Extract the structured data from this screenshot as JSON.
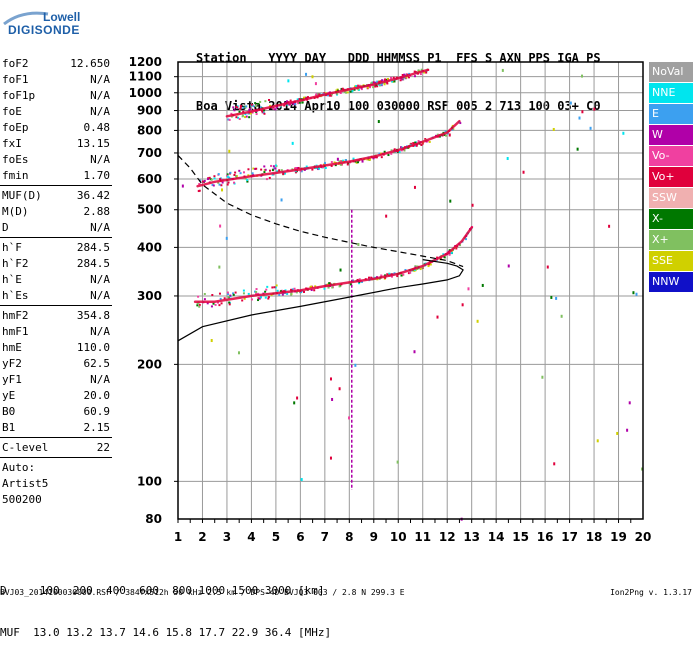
{
  "logo": {
    "line1": "Lowell",
    "line2": "DIGISONDE"
  },
  "header": {
    "line1": "Station   YYYY DAY   DDD HHMMSS P1  FFS S AXN PPS IGA PS",
    "line2": "Boa Vista 2014 Apr10 100 030000 RSF 005 2 713 100 03+ C0"
  },
  "params": [
    {
      "group": [
        {
          "k": "foF2",
          "v": "12.650"
        },
        {
          "k": "foF1",
          "v": "N/A"
        },
        {
          "k": "foF1p",
          "v": "N/A"
        },
        {
          "k": "foE",
          "v": "N/A"
        },
        {
          "k": "foEp",
          "v": "0.48"
        },
        {
          "k": "fxI",
          "v": "13.15"
        },
        {
          "k": "foEs",
          "v": "N/A"
        },
        {
          "k": "fmin",
          "v": "1.70"
        }
      ]
    },
    {
      "group": [
        {
          "k": "MUF(D)",
          "v": "36.42"
        },
        {
          "k": "M(D)",
          "v": "2.88"
        },
        {
          "k": "D",
          "v": "N/A"
        }
      ]
    },
    {
      "group": [
        {
          "k": "h`F",
          "v": "284.5"
        },
        {
          "k": "h`F2",
          "v": "284.5"
        },
        {
          "k": "h`E",
          "v": "N/A"
        },
        {
          "k": "h`Es",
          "v": "N/A"
        }
      ]
    },
    {
      "group": [
        {
          "k": "hmF2",
          "v": "354.8"
        },
        {
          "k": "hmF1",
          "v": "N/A"
        },
        {
          "k": "hmE",
          "v": "110.0"
        },
        {
          "k": "yF2",
          "v": "62.5"
        },
        {
          "k": "yF1",
          "v": "N/A"
        },
        {
          "k": "yE",
          "v": "20.0"
        },
        {
          "k": "B0",
          "v": "60.9"
        },
        {
          "k": "B1",
          "v": "2.15"
        }
      ]
    },
    {
      "group": [
        {
          "k": "C-level",
          "v": "22"
        }
      ]
    }
  ],
  "scaling": {
    "line1": "Auto:",
    "line2": "Artist5",
    "line3": "500200"
  },
  "legend": [
    {
      "label": "NoVal",
      "color": "#a0a0a0"
    },
    {
      "label": "NNE",
      "color": "#00e5ee"
    },
    {
      "label": "E",
      "color": "#3ca0f0"
    },
    {
      "label": "W",
      "color": "#b000a8"
    },
    {
      "label": "Vo-",
      "color": "#f040a0"
    },
    {
      "label": "Vo+",
      "color": "#e0003c"
    },
    {
      "label": "SSW",
      "color": "#f0b0b0"
    },
    {
      "label": "X-",
      "color": "#007800"
    },
    {
      "label": "X+",
      "color": "#80c060"
    },
    {
      "label": "SSE",
      "color": "#d0d000"
    },
    {
      "label": "NNW",
      "color": "#1010c8"
    }
  ],
  "footer": {
    "d_row": "D     100  200  400  600  800 1000 1500 3000 [km]",
    "muf_row": "MUF  13.0 13.2 13.7 14.6 15.8 17.7 22.9 36.4 [MHz]",
    "file_info": "BVJ03_2014100030000.RSF / 384fx512h 50 kHz 2.5 km / DPS-4D BVJ03 003 / 2.8 N 299.3 E",
    "version": "Ion2Png v. 1.3.17"
  },
  "chart_data": {
    "type": "scatter",
    "title": "",
    "xlabel": "",
    "ylabel": "",
    "xlim": [
      1,
      20
    ],
    "ylim": [
      80,
      1200
    ],
    "xticks": [
      1,
      2,
      3,
      4,
      5,
      6,
      7,
      8,
      9,
      10,
      11,
      12,
      13,
      14,
      15,
      16,
      17,
      18,
      19,
      20
    ],
    "yticks": [
      80,
      100,
      200,
      300,
      400,
      500,
      600,
      700,
      800,
      900,
      1000,
      1100,
      1200
    ],
    "yscale": "log",
    "grid": true,
    "series": [
      {
        "color": "#e0003c",
        "style": "trace",
        "points": [
          [
            1.7,
            290
          ],
          [
            2.5,
            290
          ],
          [
            4,
            300
          ],
          [
            5,
            305
          ],
          [
            6,
            310
          ],
          [
            7,
            318
          ],
          [
            8,
            325
          ],
          [
            9,
            332
          ],
          [
            10,
            342
          ],
          [
            11,
            358
          ],
          [
            12,
            385
          ],
          [
            12.6,
            415
          ],
          [
            13,
            450
          ]
        ]
      },
      {
        "color": "#e0003c",
        "style": "trace",
        "points": [
          [
            1.8,
            575
          ],
          [
            2.5,
            590
          ],
          [
            4,
            610
          ],
          [
            5,
            622
          ],
          [
            6,
            635
          ],
          [
            7,
            650
          ],
          [
            8,
            665
          ],
          [
            9,
            685
          ],
          [
            10,
            712
          ],
          [
            11,
            748
          ],
          [
            12,
            790
          ],
          [
            12.5,
            845
          ]
        ]
      },
      {
        "color": "#e0003c",
        "style": "trace",
        "points": [
          [
            3,
            870
          ],
          [
            4,
            895
          ],
          [
            5,
            925
          ],
          [
            6,
            955
          ],
          [
            7,
            990
          ],
          [
            8,
            1020
          ],
          [
            9,
            1050
          ],
          [
            10,
            1090
          ],
          [
            11.2,
            1145
          ]
        ]
      },
      {
        "color": "#000000",
        "style": "solid",
        "points": [
          [
            1,
            230
          ],
          [
            2,
            250
          ],
          [
            4,
            268
          ],
          [
            6,
            282
          ],
          [
            8,
            298
          ],
          [
            10,
            315
          ],
          [
            11,
            322
          ],
          [
            12,
            330
          ],
          [
            12.5,
            338
          ],
          [
            12.65,
            350
          ],
          [
            12.4,
            358
          ],
          [
            12,
            364
          ],
          [
            11,
            372
          ]
        ]
      },
      {
        "color": "#000000",
        "style": "dashed",
        "points": [
          [
            1,
            690
          ],
          [
            1.5,
            640
          ],
          [
            2,
            580
          ],
          [
            3,
            520
          ],
          [
            4,
            485
          ],
          [
            5,
            460
          ],
          [
            6,
            440
          ],
          [
            7,
            425
          ],
          [
            8,
            412
          ],
          [
            9,
            400
          ],
          [
            10,
            390
          ],
          [
            11,
            380
          ],
          [
            12,
            370
          ],
          [
            12.65,
            357
          ]
        ]
      }
    ]
  }
}
